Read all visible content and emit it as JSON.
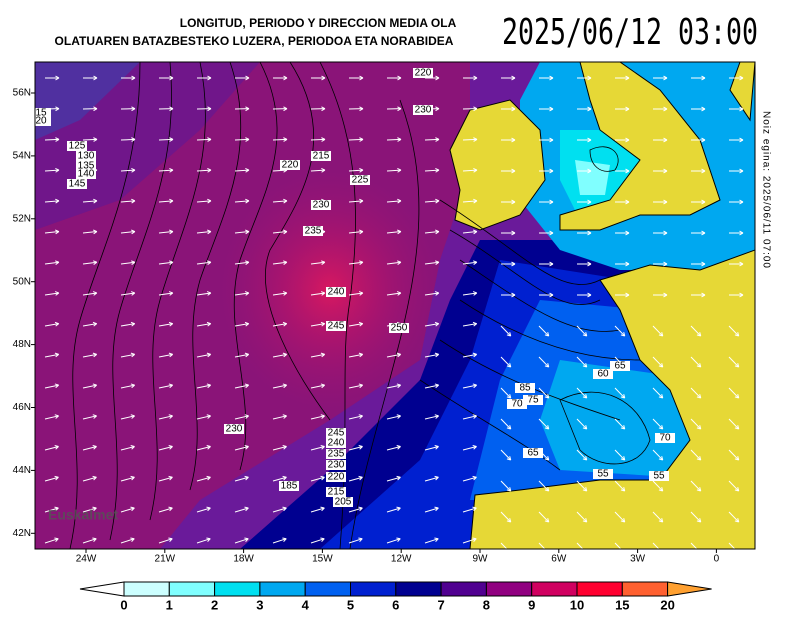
{
  "header": {
    "title_lines": [
      "LONGITUD, PERIODO Y DIRECCION MEDIA OLA",
      "OLATUAREN BATAZBESTEKO LUZERA, PERIODOA  ETA NORABIDEA"
    ],
    "datetime": "2025/06/12 03:00"
  },
  "side_note": "Noiz egina: 2025/06/11 07:00",
  "logo": "Euskalmet",
  "map": {
    "lat_labels": [
      "56N",
      "54N",
      "52N",
      "50N",
      "48N",
      "46N",
      "44N",
      "42N"
    ],
    "lon_labels": [
      "24W",
      "21W",
      "18W",
      "15W",
      "12W",
      "9W",
      "6W",
      "3W",
      "0"
    ],
    "contour_labels": [
      "220",
      "230",
      "215",
      "220",
      "225",
      "230",
      "235",
      "240",
      "245",
      "250",
      "230",
      "185",
      "245",
      "240",
      "235",
      "230",
      "220",
      "215",
      "205",
      "85",
      "70",
      "75",
      "60",
      "65",
      "65",
      "70",
      "55",
      "55",
      "125",
      "130",
      "135",
      "140",
      "145",
      "15",
      "20"
    ]
  },
  "colorbar": {
    "ticks": [
      0,
      1,
      2,
      3,
      4,
      5,
      6,
      7,
      8,
      9,
      10,
      15,
      20
    ],
    "colors": [
      "#ffffff",
      "#ccffff",
      "#80ffff",
      "#00e0f0",
      "#00a8f0",
      "#0060f0",
      "#0020d0",
      "#000090",
      "#500090",
      "#900080",
      "#d00060",
      "#ff0030",
      "#ff6030",
      "#ffa030"
    ]
  }
}
